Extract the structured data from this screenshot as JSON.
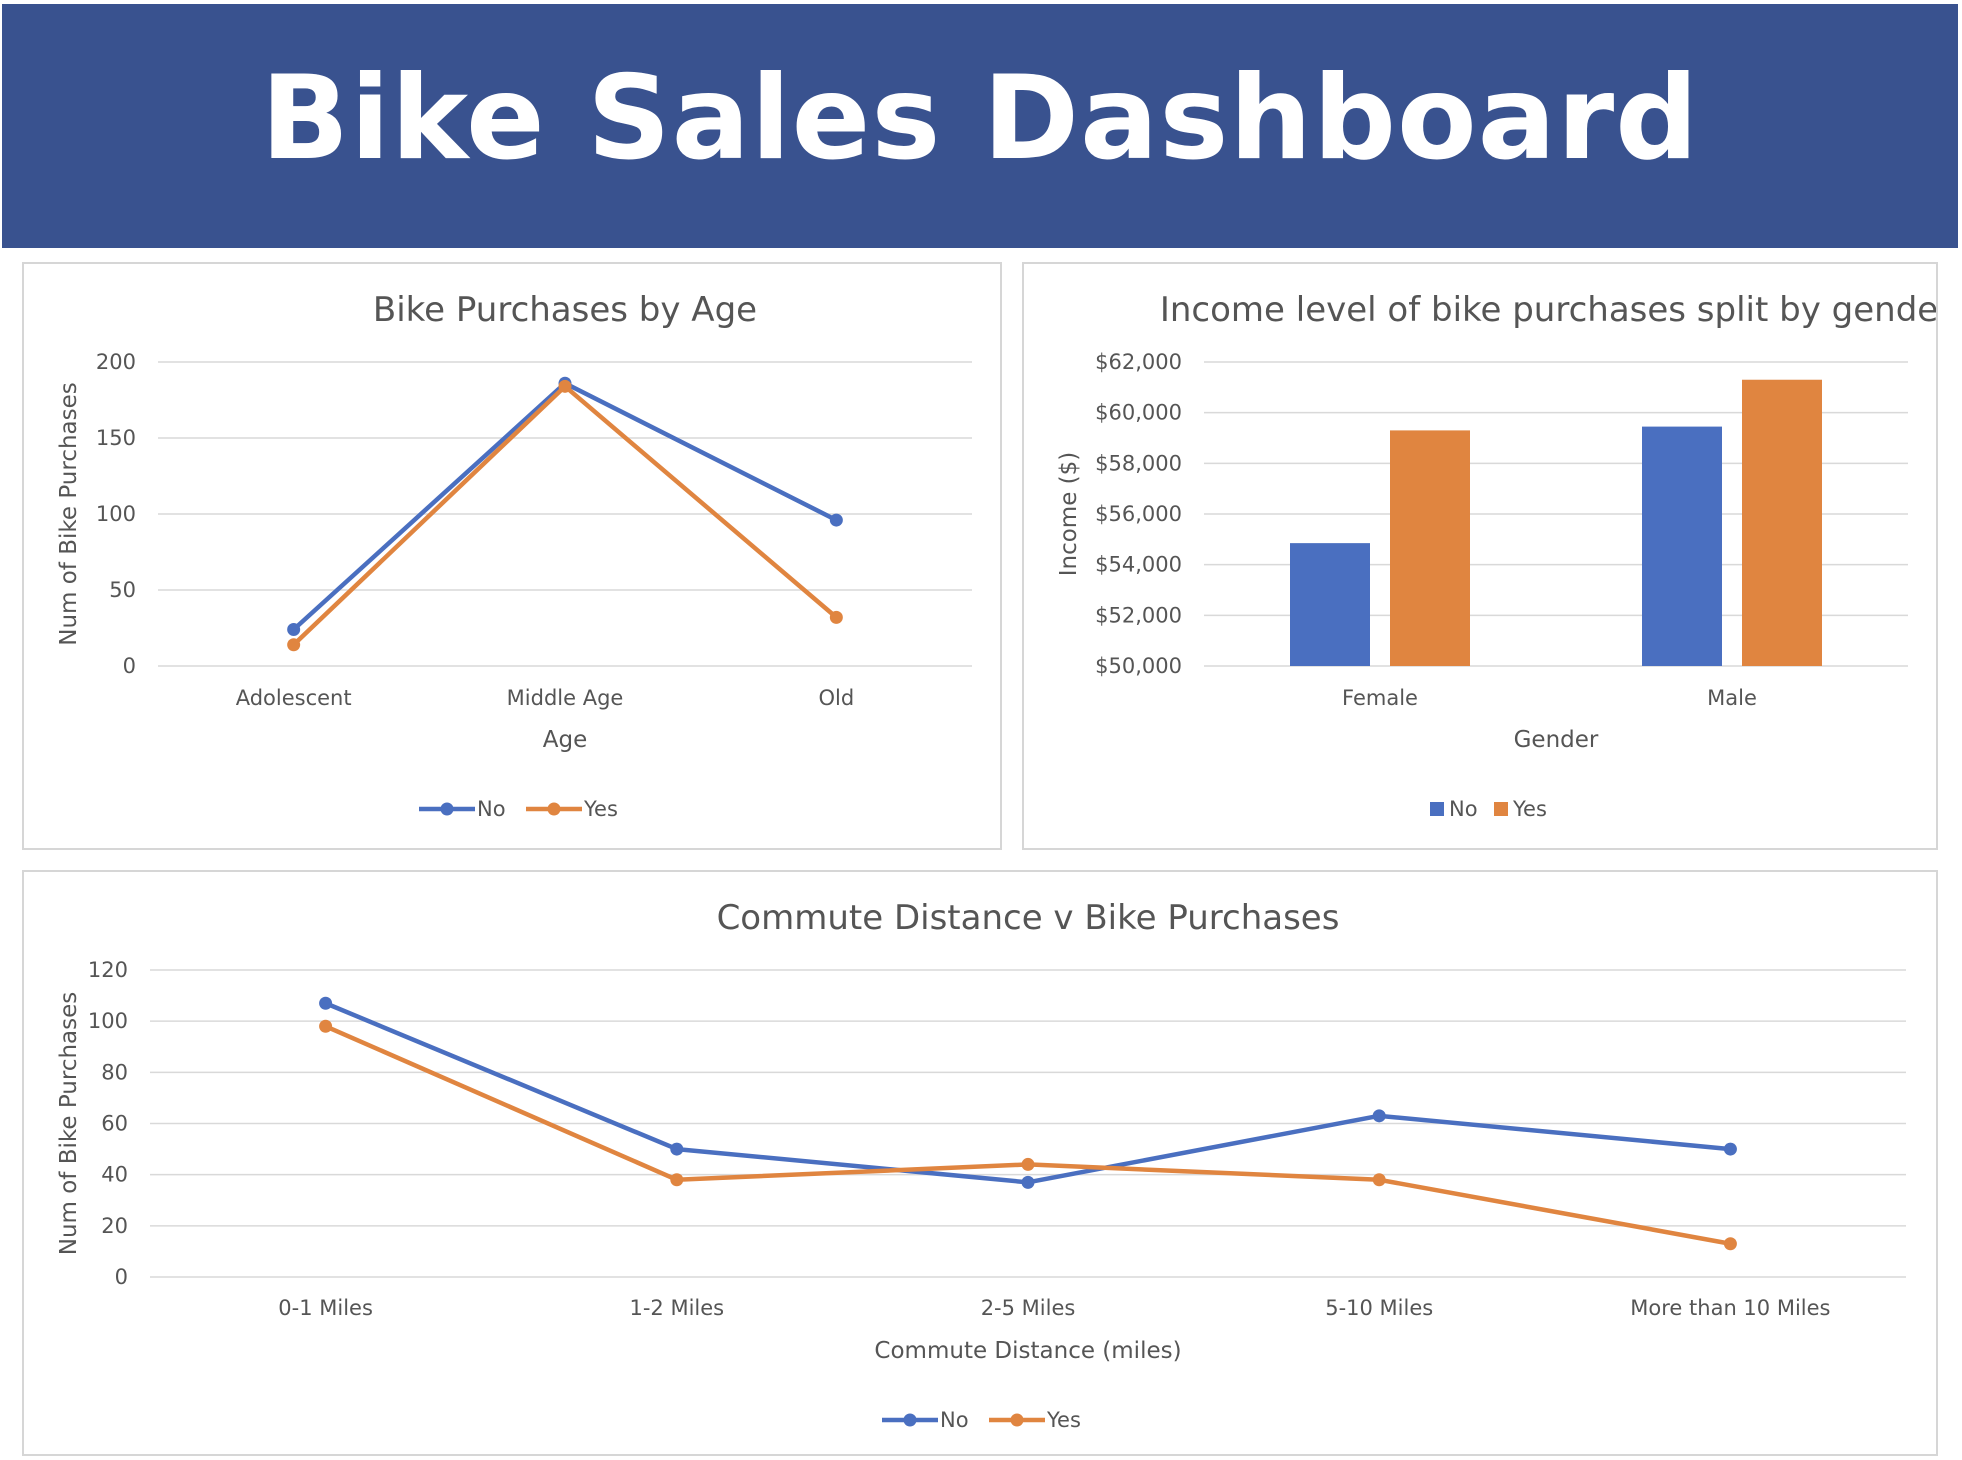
{
  "header": {
    "title": "Bike Sales Dashboard"
  },
  "colors": {
    "header_bg": "#39528f",
    "no": "#4a6fc0",
    "yes": "#e08540"
  },
  "chart_data": [
    {
      "id": "age",
      "type": "line",
      "title": "Bike Purchases by Age",
      "xlabel": "Age",
      "ylabel": "Num of Bike Purchases",
      "categories": [
        "Adolescent",
        "Middle Age",
        "Old"
      ],
      "ylim": [
        0,
        200
      ],
      "yticks": [
        0,
        50,
        100,
        150,
        200
      ],
      "ytick_labels": [
        "0",
        "50",
        "100",
        "150",
        "200"
      ],
      "grid": true,
      "legend": "bottom",
      "series": [
        {
          "name": "No",
          "values": [
            24,
            186,
            96
          ]
        },
        {
          "name": "Yes",
          "values": [
            14,
            184,
            32
          ]
        }
      ]
    },
    {
      "id": "income",
      "type": "bar",
      "title": "Income level of bike purchases split by gender",
      "xlabel": "Gender",
      "ylabel": "Income ($)",
      "categories": [
        "Female",
        "Male"
      ],
      "ylim": [
        50000,
        62000
      ],
      "yticks": [
        50000,
        52000,
        54000,
        56000,
        58000,
        60000,
        62000
      ],
      "ytick_labels": [
        "$50,000",
        "$52,000",
        "$54,000",
        "$56,000",
        "$58,000",
        "$60,000",
        "$62,000"
      ],
      "grid": true,
      "legend": "bottom",
      "series": [
        {
          "name": "No",
          "values": [
            54850,
            59450
          ]
        },
        {
          "name": "Yes",
          "values": [
            59300,
            61300
          ]
        }
      ]
    },
    {
      "id": "commute",
      "type": "line",
      "title": "Commute Distance v Bike Purchases",
      "xlabel": "Commute Distance (miles)",
      "ylabel": "Num of Bike Purchases",
      "categories": [
        "0-1 Miles",
        "1-2 Miles",
        "2-5 Miles",
        "5-10 Miles",
        "More than 10 Miles"
      ],
      "ylim": [
        0,
        120
      ],
      "yticks": [
        0,
        20,
        40,
        60,
        80,
        100,
        120
      ],
      "ytick_labels": [
        "0",
        "20",
        "40",
        "60",
        "80",
        "100",
        "120"
      ],
      "grid": true,
      "legend": "bottom",
      "series": [
        {
          "name": "No",
          "values": [
            107,
            50,
            37,
            63,
            50
          ]
        },
        {
          "name": "Yes",
          "values": [
            98,
            38,
            44,
            38,
            13
          ]
        }
      ]
    }
  ]
}
